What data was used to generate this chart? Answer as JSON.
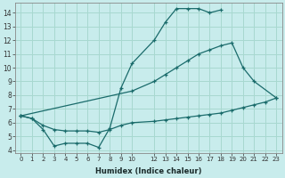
{
  "xlabel": "Humidex (Indice chaleur)",
  "bg_color": "#c8ecec",
  "grid_color": "#a8d8d0",
  "line_color": "#1a6b6b",
  "xlim": [
    -0.5,
    23.5
  ],
  "ylim": [
    3.8,
    14.7
  ],
  "xtick_pos": [
    0,
    1,
    2,
    3,
    4,
    5,
    6,
    7,
    8,
    9,
    10,
    12,
    13,
    14,
    15,
    16,
    17,
    18,
    19,
    20,
    21,
    22,
    23
  ],
  "xtick_labels": [
    "0",
    "1",
    "2",
    "3",
    "4",
    "5",
    "6",
    "7",
    "8",
    "9",
    "10",
    "12",
    "13",
    "14",
    "15",
    "16",
    "17",
    "18",
    "19",
    "20",
    "21",
    "22",
    "23"
  ],
  "yticks": [
    4,
    5,
    6,
    7,
    8,
    9,
    10,
    11,
    12,
    13,
    14
  ],
  "curve1_x": [
    0,
    1,
    2,
    3,
    4,
    5,
    6,
    7,
    8,
    9,
    10,
    12,
    13,
    14,
    15,
    16,
    17,
    18
  ],
  "curve1_y": [
    6.5,
    6.3,
    5.5,
    4.3,
    4.5,
    4.5,
    4.5,
    4.2,
    5.6,
    8.5,
    10.3,
    12.0,
    13.3,
    14.3,
    14.3,
    14.3,
    14.0,
    14.2
  ],
  "curve2_x": [
    0,
    10,
    12,
    13,
    14,
    15,
    16,
    17,
    18,
    19,
    20,
    21,
    23
  ],
  "curve2_y": [
    6.5,
    8.3,
    9.0,
    9.5,
    10.0,
    10.5,
    11.0,
    11.3,
    11.6,
    11.8,
    10.0,
    9.0,
    7.8
  ],
  "curve3_x": [
    0,
    1,
    2,
    3,
    4,
    5,
    6,
    7,
    8,
    9,
    10,
    12,
    13,
    14,
    15,
    16,
    17,
    18,
    19,
    20,
    21,
    22,
    23
  ],
  "curve3_y": [
    6.5,
    6.3,
    5.8,
    5.5,
    5.4,
    5.4,
    5.4,
    5.3,
    5.5,
    5.8,
    6.0,
    6.1,
    6.2,
    6.3,
    6.4,
    6.5,
    6.6,
    6.7,
    6.9,
    7.1,
    7.3,
    7.5,
    7.8
  ]
}
